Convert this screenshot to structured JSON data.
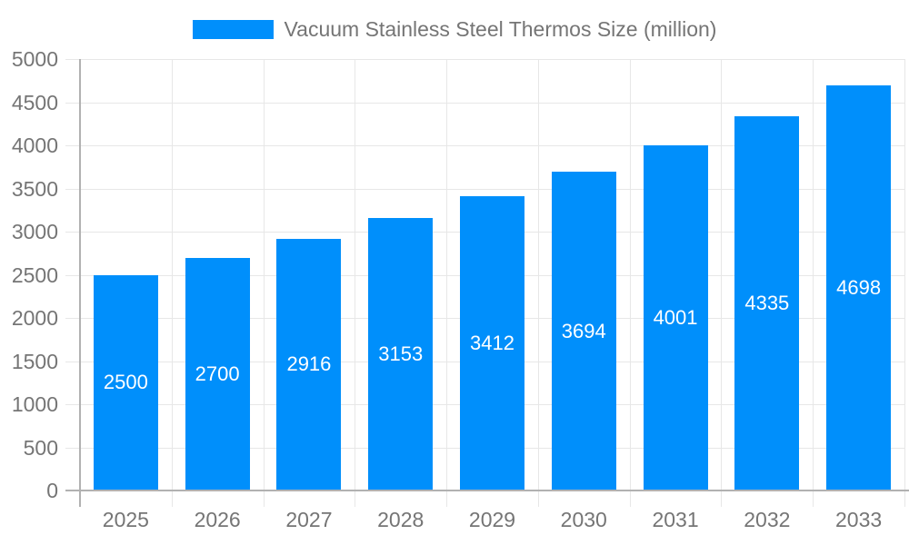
{
  "legend": {
    "label": "Vacuum Stainless Steel Thermos Size (million)",
    "swatch_color": "#008FFB"
  },
  "chart_data": {
    "type": "bar",
    "title": "Vacuum Stainless Steel Thermos Size (million)",
    "categories": [
      "2025",
      "2026",
      "2027",
      "2028",
      "2029",
      "2030",
      "2031",
      "2032",
      "2033"
    ],
    "values": [
      2500,
      2700,
      2916,
      3153,
      3412,
      3694,
      4001,
      4335,
      4698
    ],
    "xlabel": "",
    "ylabel": "",
    "ylim": [
      0,
      5000
    ],
    "ytick_step": 500,
    "ytick_labels": [
      "0",
      "500",
      "1000",
      "1500",
      "2000",
      "2500",
      "3000",
      "3500",
      "4000",
      "4500",
      "5000"
    ],
    "grid": true,
    "legend_position": "top",
    "bar_color": "#008FFB",
    "value_label_color": "#ffffff",
    "axis_text_color": "#757575",
    "gridline_color": "#e7e7e7",
    "axis_line_color": "#b1b1b1"
  }
}
